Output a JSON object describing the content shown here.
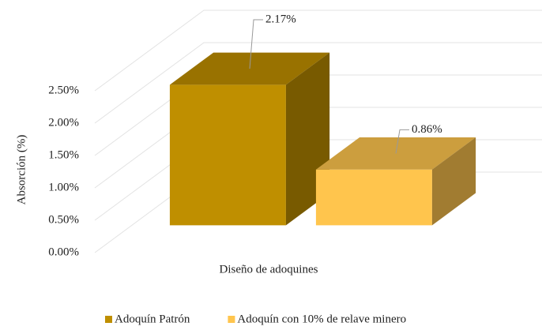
{
  "chart_data": {
    "type": "bar3d",
    "y_label": "Absorción (%)",
    "x_label": "Diseño de adoquines",
    "categories": [
      null
    ],
    "series": [
      {
        "name": "Adoquín Patrón",
        "color": "#bf8f00",
        "values": [
          2.17
        ],
        "value_labels": [
          "2.17%"
        ]
      },
      {
        "name": "Adoquín con 10% de relave minero",
        "color": "#ffc54d",
        "values": [
          0.86
        ],
        "value_labels": [
          "0.86%"
        ]
      }
    ],
    "ylim": [
      0,
      2.5
    ],
    "yticks": [
      {
        "value": 0,
        "label": "0.00%"
      },
      {
        "value": 0.5,
        "label": "0.50%"
      },
      {
        "value": 1,
        "label": "1.00%"
      },
      {
        "value": 1.5,
        "label": "1.50%"
      },
      {
        "value": 2,
        "label": "2.00%"
      },
      {
        "value": 2.5,
        "label": "2.50%"
      }
    ],
    "grid": true,
    "legend": "bottom"
  }
}
